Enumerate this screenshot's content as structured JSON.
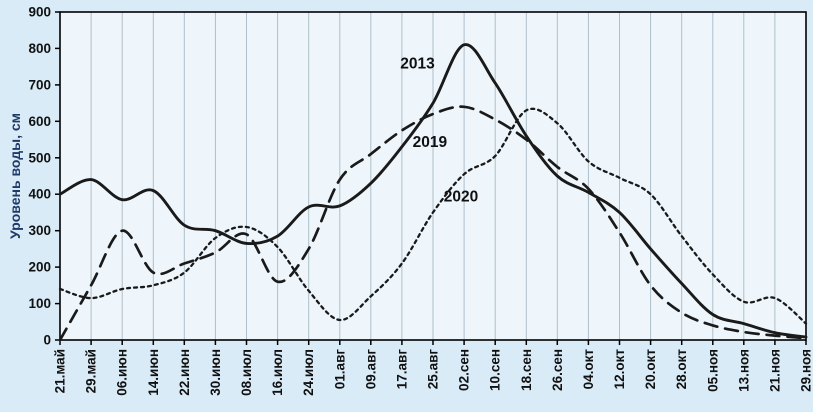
{
  "page": {
    "background": "#d9ebf7"
  },
  "chart_data": {
    "type": "line",
    "title": "",
    "ylabel": "Уровень воды, см",
    "xlabel": "",
    "ylim": [
      0,
      900
    ],
    "ytick_step": 100,
    "grid": "vertical",
    "legend_position": "inline-annotations",
    "categories": [
      "21.май",
      "29.май",
      "06.июн",
      "14.июн",
      "22.июн",
      "30.июн",
      "08.июл",
      "16.июл",
      "24.июл",
      "01.авг",
      "09.авг",
      "17.авг",
      "25.авг",
      "02.сен",
      "10.сен",
      "18.сен",
      "26.сен",
      "04.окт",
      "12.окт",
      "20.окт",
      "28.окт",
      "05.ноя",
      "13.ноя",
      "21.ноя",
      "29.ноя"
    ],
    "series": [
      {
        "name": "2013",
        "style": "solid",
        "values": [
          400,
          440,
          385,
          410,
          315,
          300,
          265,
          285,
          365,
          368,
          430,
          530,
          650,
          810,
          705,
          560,
          450,
          405,
          350,
          250,
          155,
          70,
          45,
          20,
          8
        ]
      },
      {
        "name": "2019",
        "style": "long-dash",
        "values": [
          0,
          150,
          300,
          185,
          210,
          240,
          290,
          160,
          250,
          440,
          510,
          575,
          620,
          640,
          605,
          550,
          475,
          415,
          295,
          150,
          75,
          40,
          22,
          12,
          5
        ]
      },
      {
        "name": "2020",
        "style": "short-dash",
        "values": [
          140,
          115,
          140,
          150,
          185,
          280,
          310,
          255,
          135,
          55,
          120,
          210,
          350,
          455,
          505,
          630,
          595,
          490,
          445,
          400,
          285,
          180,
          105,
          115,
          45
        ]
      }
    ],
    "annotations": [
      {
        "text": "2013",
        "xi": 11.5,
        "y": 745
      },
      {
        "text": "2019",
        "xi": 11.9,
        "y": 530
      },
      {
        "text": "2020",
        "xi": 12.9,
        "y": 380
      }
    ],
    "colors": {
      "line": "#1a1a1a",
      "grid": "#aebfc9",
      "plot_bg": "#eef6fc",
      "axis": "#000000",
      "tick_label": "#111111",
      "ylabel_color": "#1f3a68"
    }
  }
}
